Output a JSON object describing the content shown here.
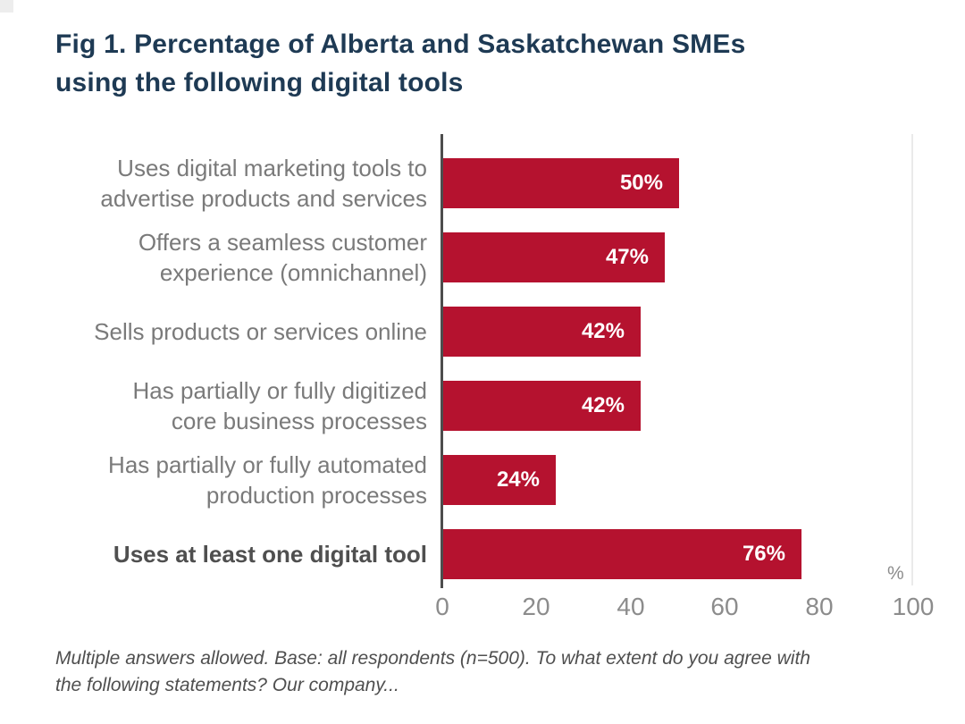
{
  "figure": {
    "title": "Fig 1. Percentage of Alberta and Saskatchewan SMEs\nusing the following digital tools",
    "footnote": "Multiple answers allowed. Base: all respondents (n=500). To what extent do you agree with\nthe following statements? Our company...",
    "unit_label": "%"
  },
  "colors": {
    "bar": "#b5122f",
    "title": "#1e3a54",
    "category_label": "#7a7a7a",
    "category_label_emphasis": "#4f4f4f",
    "value_label": "#ffffff",
    "axis": "#4d4d4d",
    "gridline": "#eaeaea",
    "tick_label": "#8c8c8c",
    "footnote": "#4f4f4f",
    "background": "#ffffff"
  },
  "chart_data": {
    "type": "bar",
    "orientation": "horizontal",
    "title": "Fig 1. Percentage of Alberta and Saskatchewan SMEs using the following digital tools",
    "xlabel": "%",
    "ylabel": "",
    "xlim": [
      0,
      100
    ],
    "x_ticks": [
      0,
      20,
      40,
      60,
      80,
      100
    ],
    "grid": "single line at 100 only",
    "legend": "none",
    "bar_color": "#b5122f",
    "categories": [
      "Uses digital marketing tools to\nadvertise products and services",
      "Offers a seamless customer\nexperience (omnichannel)",
      "Sells products or services online",
      "Has partially or fully digitized\ncore business processes",
      "Has partially or fully automated\nproduction processes",
      "Uses at least one digital tool"
    ],
    "values": [
      50,
      47,
      42,
      42,
      24,
      76
    ],
    "value_labels": [
      "50%",
      "47%",
      "42%",
      "42%",
      "24%",
      "76%"
    ],
    "emphasized_category_index": 5
  }
}
